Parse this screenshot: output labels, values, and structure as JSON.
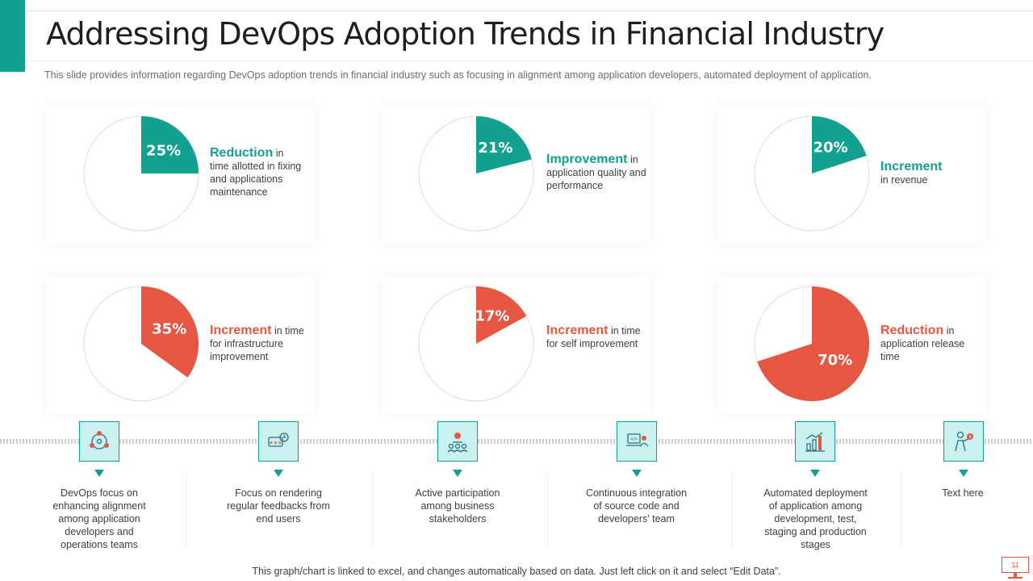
{
  "title": "Addressing DevOps Adoption Trends in Financial Industry",
  "subtitle": "This slide provides information regarding DevOps adoption trends in financial industry such as focusing in alignment among application developers, automated deployment of application.",
  "colors": {
    "teal": "#12a08f",
    "red": "#e55743",
    "icon_bg": "#c8f1ef"
  },
  "chart_data": [
    {
      "type": "pie",
      "value_percent": 25,
      "label": "25%",
      "color": "#12a08f",
      "headline": "Reduction",
      "text_inline": " in",
      "text_rest": "time allotted in fixing and applications maintenance"
    },
    {
      "type": "pie",
      "value_percent": 21,
      "label": "21%",
      "color": "#12a08f",
      "headline": "Improvement",
      "text_inline": " in",
      "text_rest": "application quality and performance"
    },
    {
      "type": "pie",
      "value_percent": 20,
      "label": "20%",
      "color": "#12a08f",
      "headline": "Increment",
      "text_inline": "",
      "text_rest": "in revenue"
    },
    {
      "type": "pie",
      "value_percent": 35,
      "label": "35%",
      "color": "#e55743",
      "headline": "Increment",
      "text_inline": " in time",
      "text_rest": "for infrastructure improvement"
    },
    {
      "type": "pie",
      "value_percent": 17,
      "label": "17%",
      "color": "#e55743",
      "headline": "Increment",
      "text_inline": " in time",
      "text_rest": "for self improvement"
    },
    {
      "type": "pie",
      "value_percent": 70,
      "label": "70%",
      "color": "#e55743",
      "headline": "Reduction",
      "text_inline": " in",
      "text_rest": "application release time"
    }
  ],
  "steps": [
    {
      "icon": "team-alignment-icon",
      "text": "DevOps focus on enhancing alignment among application developers and operations teams"
    },
    {
      "icon": "feedback-rating-icon",
      "text": "Focus on rendering regular feedbacks from end users"
    },
    {
      "icon": "stakeholders-icon",
      "text": "Active participation among business stakeholders"
    },
    {
      "icon": "developer-laptop-icon",
      "text": "Continuous integration of source code and developers' team"
    },
    {
      "icon": "deployment-growth-icon",
      "text": "Automated deployment of application among development, test, staging and production stages"
    },
    {
      "icon": "business-person-icon",
      "text": "Text here"
    }
  ],
  "footer": "This graph/chart is linked to excel, and changes automatically based on data. Just left click on it and select “Edit Data”.",
  "page_number": "11"
}
